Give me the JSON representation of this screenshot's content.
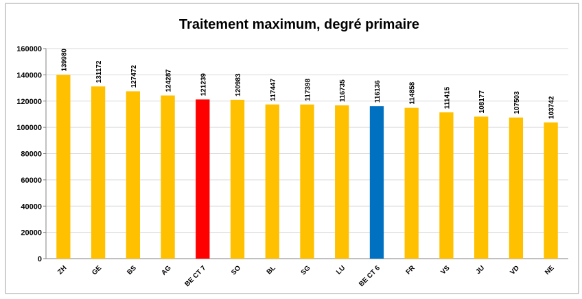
{
  "chart_data": {
    "type": "bar",
    "title": "Traitement maximum, degré primaire",
    "categories": [
      "ZH",
      "GE",
      "BS",
      "AG",
      "BE CT 7",
      "SO",
      "BL",
      "SG",
      "LU",
      "BE CT 6",
      "FR",
      "VS",
      "JU",
      "VD",
      "NE"
    ],
    "values": [
      139980,
      131172,
      127472,
      124287,
      121239,
      120983,
      117447,
      117398,
      116735,
      116136,
      114858,
      111415,
      108177,
      107503,
      103742
    ],
    "colors": [
      "#ffc000",
      "#ffc000",
      "#ffc000",
      "#ffc000",
      "#ff0000",
      "#ffc000",
      "#ffc000",
      "#ffc000",
      "#ffc000",
      "#0070c0",
      "#ffc000",
      "#ffc000",
      "#ffc000",
      "#ffc000",
      "#ffc000"
    ],
    "ylim": [
      0,
      160000
    ],
    "yticks": [
      0,
      20000,
      40000,
      60000,
      80000,
      100000,
      120000,
      140000,
      160000
    ],
    "grid": true
  }
}
